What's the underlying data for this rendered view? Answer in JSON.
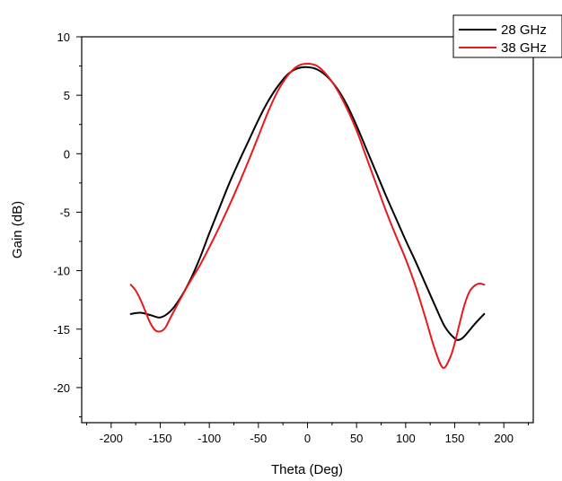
{
  "chart_data": {
    "type": "line",
    "title": "",
    "xlabel": "Theta (Deg)",
    "ylabel": "Gain (dB)",
    "xlim": [
      -230,
      230
    ],
    "ylim": [
      -23,
      10
    ],
    "xticks": [
      -200,
      -150,
      -100,
      -50,
      0,
      50,
      100,
      150,
      200
    ],
    "yticks": [
      10,
      5,
      0,
      -5,
      -10,
      -15,
      -20
    ],
    "grid": false,
    "legend_position": "top-right",
    "series": [
      {
        "name": "28 GHz",
        "color": "#000000",
        "points": [
          [
            -180,
            -13.7
          ],
          [
            -170,
            -13.6
          ],
          [
            -160,
            -13.8
          ],
          [
            -150,
            -14.0
          ],
          [
            -140,
            -13.5
          ],
          [
            -130,
            -12.4
          ],
          [
            -120,
            -10.9
          ],
          [
            -110,
            -9.0
          ],
          [
            -100,
            -6.8
          ],
          [
            -90,
            -4.7
          ],
          [
            -80,
            -2.6
          ],
          [
            -70,
            -0.7
          ],
          [
            -60,
            1.1
          ],
          [
            -50,
            2.9
          ],
          [
            -40,
            4.5
          ],
          [
            -30,
            5.8
          ],
          [
            -20,
            6.8
          ],
          [
            -10,
            7.3
          ],
          [
            0,
            7.4
          ],
          [
            10,
            7.2
          ],
          [
            20,
            6.6
          ],
          [
            30,
            5.6
          ],
          [
            40,
            4.2
          ],
          [
            50,
            2.4
          ],
          [
            60,
            0.4
          ],
          [
            70,
            -1.6
          ],
          [
            80,
            -3.6
          ],
          [
            90,
            -5.5
          ],
          [
            100,
            -7.4
          ],
          [
            110,
            -9.2
          ],
          [
            120,
            -11.1
          ],
          [
            130,
            -13.0
          ],
          [
            140,
            -14.8
          ],
          [
            150,
            -15.8
          ],
          [
            155,
            -15.9
          ],
          [
            160,
            -15.6
          ],
          [
            170,
            -14.6
          ],
          [
            180,
            -13.7
          ]
        ]
      },
      {
        "name": "38 GHz",
        "color": "#e8191c",
        "points": [
          [
            -180,
            -11.2
          ],
          [
            -175,
            -11.7
          ],
          [
            -170,
            -12.5
          ],
          [
            -165,
            -13.5
          ],
          [
            -160,
            -14.5
          ],
          [
            -155,
            -15.1
          ],
          [
            -150,
            -15.2
          ],
          [
            -145,
            -14.9
          ],
          [
            -140,
            -14.1
          ],
          [
            -130,
            -12.5
          ],
          [
            -120,
            -11.0
          ],
          [
            -110,
            -9.6
          ],
          [
            -100,
            -8.0
          ],
          [
            -90,
            -6.3
          ],
          [
            -80,
            -4.5
          ],
          [
            -70,
            -2.6
          ],
          [
            -60,
            -0.6
          ],
          [
            -50,
            1.5
          ],
          [
            -40,
            3.6
          ],
          [
            -30,
            5.4
          ],
          [
            -20,
            6.7
          ],
          [
            -10,
            7.5
          ],
          [
            0,
            7.7
          ],
          [
            10,
            7.5
          ],
          [
            20,
            6.7
          ],
          [
            30,
            5.5
          ],
          [
            40,
            3.9
          ],
          [
            50,
            2.0
          ],
          [
            60,
            -0.3
          ],
          [
            70,
            -2.6
          ],
          [
            80,
            -4.9
          ],
          [
            90,
            -7.0
          ],
          [
            100,
            -9.0
          ],
          [
            110,
            -11.3
          ],
          [
            120,
            -14.0
          ],
          [
            130,
            -16.8
          ],
          [
            138,
            -18.3
          ],
          [
            145,
            -17.5
          ],
          [
            150,
            -16.2
          ],
          [
            155,
            -14.5
          ],
          [
            160,
            -12.9
          ],
          [
            165,
            -11.8
          ],
          [
            170,
            -11.3
          ],
          [
            175,
            -11.1
          ],
          [
            180,
            -11.2
          ]
        ]
      }
    ]
  }
}
